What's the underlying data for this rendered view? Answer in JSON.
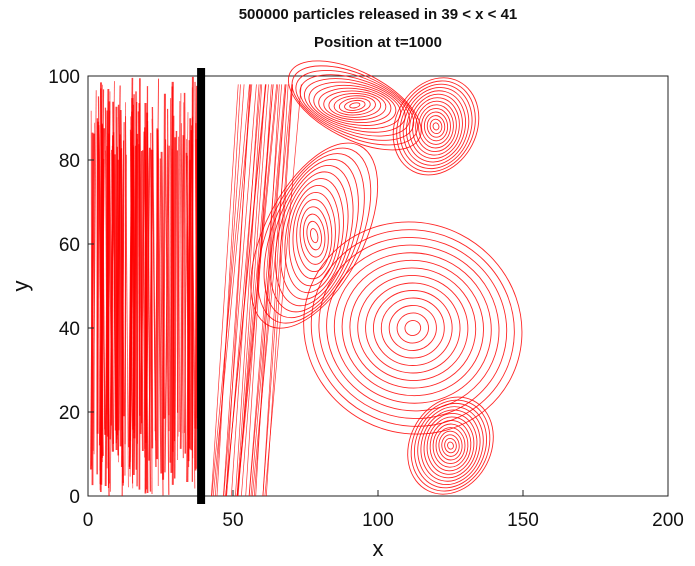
{
  "chart_data": {
    "type": "scatter",
    "title": "500000 particles released in 39 < x < 41",
    "subtitle": "Position at t=1000",
    "xlabel": "x",
    "ylabel": "y",
    "xlim": [
      0,
      200
    ],
    "ylim": [
      0,
      100
    ],
    "xticks": [
      "0",
      "50",
      "100",
      "150",
      "200"
    ],
    "yticks": [
      "0",
      "20",
      "40",
      "60",
      "80",
      "100"
    ],
    "grid": false,
    "color": "#ff0000",
    "marker_line": {
      "x": 39,
      "color": "#000000"
    },
    "regions": [
      {
        "name": "left-dense-band",
        "x_range": [
          0,
          40
        ],
        "y_range": [
          0,
          100
        ]
      },
      {
        "name": "eddy-upper",
        "center": [
          78,
          62
        ],
        "radius": [
          17,
          24
        ]
      },
      {
        "name": "eddy-lower-right",
        "center": [
          112,
          40
        ],
        "radius": [
          38,
          25
        ]
      },
      {
        "name": "eddy-bottom",
        "center": [
          125,
          12
        ],
        "radius": [
          14,
          12
        ]
      },
      {
        "name": "eddy-top-right",
        "center": [
          120,
          88
        ],
        "radius": [
          14,
          12
        ]
      },
      {
        "name": "top-arc",
        "center": [
          92,
          93
        ],
        "radius": [
          25,
          8
        ]
      }
    ]
  }
}
